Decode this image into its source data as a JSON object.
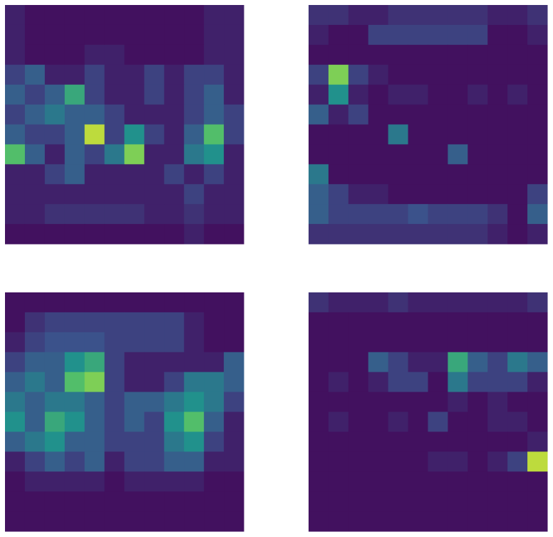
{
  "chart_data": [
    {
      "type": "heatmap",
      "clim": [
        0,
        1
      ],
      "colormap": [
        "#440154",
        "#3b528b",
        "#21918c",
        "#5ec962",
        "#fde725"
      ],
      "values": [
        [
          0.1,
          0.05,
          0.05,
          0.05,
          0.05,
          0.05,
          0.05,
          0.05,
          0.05,
          0.05,
          0.1,
          0.1
        ],
        [
          0.1,
          0.05,
          0.05,
          0.05,
          0.05,
          0.05,
          0.05,
          0.05,
          0.05,
          0.05,
          0.1,
          0.1
        ],
        [
          0.1,
          0.05,
          0.05,
          0.05,
          0.1,
          0.1,
          0.05,
          0.05,
          0.05,
          0.05,
          0.1,
          0.1
        ],
        [
          0.2,
          0.3,
          0.1,
          0.1,
          0.2,
          0.1,
          0.1,
          0.2,
          0.1,
          0.2,
          0.2,
          0.1
        ],
        [
          0.3,
          0.2,
          0.3,
          0.6,
          0.2,
          0.1,
          0.1,
          0.2,
          0.1,
          0.2,
          0.3,
          0.1
        ],
        [
          0.2,
          0.3,
          0.4,
          0.3,
          0.3,
          0.2,
          0.1,
          0.1,
          0.1,
          0.2,
          0.3,
          0.2
        ],
        [
          0.3,
          0.2,
          0.2,
          0.3,
          0.9,
          0.2,
          0.5,
          0.2,
          0.1,
          0.3,
          0.7,
          0.2
        ],
        [
          0.7,
          0.3,
          0.1,
          0.3,
          0.2,
          0.4,
          0.8,
          0.1,
          0.1,
          0.4,
          0.5,
          0.1
        ],
        [
          0.1,
          0.1,
          0.2,
          0.3,
          0.1,
          0.1,
          0.1,
          0.1,
          0.2,
          0.1,
          0.2,
          0.1
        ],
        [
          0.1,
          0.1,
          0.1,
          0.1,
          0.1,
          0.1,
          0.1,
          0.1,
          0.1,
          0.2,
          0.1,
          0.1
        ],
        [
          0.1,
          0.1,
          0.15,
          0.15,
          0.15,
          0.15,
          0.15,
          0.1,
          0.1,
          0.15,
          0.1,
          0.1
        ],
        [
          0.05,
          0.05,
          0.05,
          0.05,
          0.05,
          0.05,
          0.05,
          0.05,
          0.05,
          0.1,
          0.05,
          0.05
        ]
      ]
    },
    {
      "type": "heatmap",
      "clim": [
        0,
        1
      ],
      "colormap": [
        "#440154",
        "#3b528b",
        "#21918c",
        "#5ec962",
        "#fde725"
      ],
      "values": [
        [
          0.15,
          0.15,
          0.1,
          0.1,
          0.15,
          0.15,
          0.15,
          0.15,
          0.15,
          0.1,
          0.1,
          0.15
        ],
        [
          0.1,
          0.05,
          0.05,
          0.2,
          0.2,
          0.2,
          0.2,
          0.2,
          0.2,
          0.05,
          0.05,
          0.1
        ],
        [
          0.05,
          0.05,
          0.05,
          0.05,
          0.05,
          0.05,
          0.05,
          0.05,
          0.05,
          0.05,
          0.05,
          0.05
        ],
        [
          0.2,
          0.8,
          0.2,
          0.1,
          0.05,
          0.05,
          0.05,
          0.05,
          0.05,
          0.05,
          0.05,
          0.05
        ],
        [
          0.1,
          0.5,
          0.1,
          0.05,
          0.1,
          0.1,
          0.05,
          0.05,
          0.1,
          0.05,
          0.1,
          0.05
        ],
        [
          0.3,
          0.1,
          0.2,
          0.05,
          0.05,
          0.05,
          0.05,
          0.05,
          0.05,
          0.05,
          0.05,
          0.05
        ],
        [
          0.05,
          0.05,
          0.05,
          0.05,
          0.4,
          0.05,
          0.05,
          0.05,
          0.05,
          0.05,
          0.05,
          0.05
        ],
        [
          0.05,
          0.05,
          0.05,
          0.05,
          0.05,
          0.05,
          0.05,
          0.3,
          0.05,
          0.05,
          0.05,
          0.05
        ],
        [
          0.4,
          0.05,
          0.05,
          0.05,
          0.05,
          0.05,
          0.05,
          0.05,
          0.05,
          0.05,
          0.05,
          0.05
        ],
        [
          0.3,
          0.2,
          0.1,
          0.1,
          0.05,
          0.05,
          0.05,
          0.05,
          0.05,
          0.05,
          0.05,
          0.2
        ],
        [
          0.3,
          0.2,
          0.2,
          0.2,
          0.2,
          0.25,
          0.2,
          0.2,
          0.2,
          0.15,
          0.05,
          0.3
        ],
        [
          0.15,
          0.15,
          0.15,
          0.15,
          0.15,
          0.15,
          0.15,
          0.15,
          0.15,
          0.1,
          0.05,
          0.1
        ]
      ]
    },
    {
      "type": "heatmap",
      "clim": [
        0,
        1
      ],
      "colormap": [
        "#440154",
        "#3b528b",
        "#21918c",
        "#5ec962",
        "#fde725"
      ],
      "values": [
        [
          0.05,
          0.05,
          0.05,
          0.05,
          0.05,
          0.05,
          0.05,
          0.05,
          0.05,
          0.05,
          0.05,
          0.05
        ],
        [
          0.05,
          0.15,
          0.2,
          0.2,
          0.2,
          0.2,
          0.2,
          0.2,
          0.2,
          0.1,
          0.05,
          0.05
        ],
        [
          0.1,
          0.2,
          0.25,
          0.25,
          0.25,
          0.2,
          0.2,
          0.2,
          0.2,
          0.1,
          0.05,
          0.05
        ],
        [
          0.2,
          0.3,
          0.3,
          0.5,
          0.6,
          0.2,
          0.1,
          0.1,
          0.1,
          0.1,
          0.1,
          0.3
        ],
        [
          0.3,
          0.4,
          0.3,
          0.7,
          0.8,
          0.2,
          0.1,
          0.1,
          0.2,
          0.4,
          0.4,
          0.3
        ],
        [
          0.4,
          0.3,
          0.4,
          0.4,
          0.3,
          0.2,
          0.3,
          0.3,
          0.4,
          0.5,
          0.4,
          0.2
        ],
        [
          0.5,
          0.3,
          0.6,
          0.5,
          0.3,
          0.2,
          0.3,
          0.2,
          0.5,
          0.7,
          0.3,
          0.1
        ],
        [
          0.3,
          0.4,
          0.5,
          0.3,
          0.3,
          0.2,
          0.2,
          0.2,
          0.4,
          0.5,
          0.2,
          0.1
        ],
        [
          0.1,
          0.2,
          0.3,
          0.2,
          0.3,
          0.1,
          0.2,
          0.2,
          0.3,
          0.3,
          0.1,
          0.1
        ],
        [
          0.05,
          0.1,
          0.1,
          0.1,
          0.1,
          0.05,
          0.1,
          0.1,
          0.1,
          0.1,
          0.05,
          0.05
        ],
        [
          0.05,
          0.05,
          0.05,
          0.05,
          0.05,
          0.05,
          0.05,
          0.05,
          0.05,
          0.05,
          0.05,
          0.05
        ],
        [
          0.05,
          0.05,
          0.05,
          0.05,
          0.05,
          0.05,
          0.05,
          0.05,
          0.05,
          0.05,
          0.05,
          0.05
        ]
      ]
    },
    {
      "type": "heatmap",
      "clim": [
        0,
        1
      ],
      "colormap": [
        "#440154",
        "#3b528b",
        "#21918c",
        "#5ec962",
        "#fde725"
      ],
      "values": [
        [
          0.15,
          0.1,
          0.1,
          0.1,
          0.15,
          0.1,
          0.1,
          0.1,
          0.1,
          0.1,
          0.1,
          0.15
        ],
        [
          0.05,
          0.05,
          0.05,
          0.05,
          0.05,
          0.05,
          0.05,
          0.05,
          0.05,
          0.05,
          0.05,
          0.05
        ],
        [
          0.05,
          0.05,
          0.05,
          0.05,
          0.05,
          0.05,
          0.05,
          0.05,
          0.05,
          0.05,
          0.05,
          0.05
        ],
        [
          0.05,
          0.05,
          0.05,
          0.3,
          0.2,
          0.1,
          0.1,
          0.6,
          0.3,
          0.2,
          0.4,
          0.3
        ],
        [
          0.05,
          0.1,
          0.05,
          0.1,
          0.2,
          0.2,
          0.05,
          0.4,
          0.2,
          0.2,
          0.2,
          0.1
        ],
        [
          0.05,
          0.05,
          0.05,
          0.05,
          0.05,
          0.05,
          0.05,
          0.1,
          0.05,
          0.1,
          0.05,
          0.05
        ],
        [
          0.05,
          0.1,
          0.05,
          0.05,
          0.1,
          0.05,
          0.2,
          0.05,
          0.05,
          0.1,
          0.1,
          0.05
        ],
        [
          0.05,
          0.05,
          0.05,
          0.05,
          0.05,
          0.05,
          0.05,
          0.05,
          0.05,
          0.05,
          0.05,
          0.1
        ],
        [
          0.05,
          0.05,
          0.05,
          0.05,
          0.05,
          0.05,
          0.1,
          0.1,
          0.05,
          0.1,
          0.2,
          0.9
        ],
        [
          0.05,
          0.05,
          0.05,
          0.05,
          0.05,
          0.05,
          0.05,
          0.05,
          0.05,
          0.05,
          0.05,
          0.05
        ],
        [
          0.05,
          0.05,
          0.05,
          0.05,
          0.05,
          0.05,
          0.05,
          0.05,
          0.05,
          0.05,
          0.05,
          0.05
        ],
        [
          0.05,
          0.05,
          0.05,
          0.05,
          0.05,
          0.05,
          0.05,
          0.05,
          0.05,
          0.05,
          0.05,
          0.05
        ]
      ]
    }
  ]
}
